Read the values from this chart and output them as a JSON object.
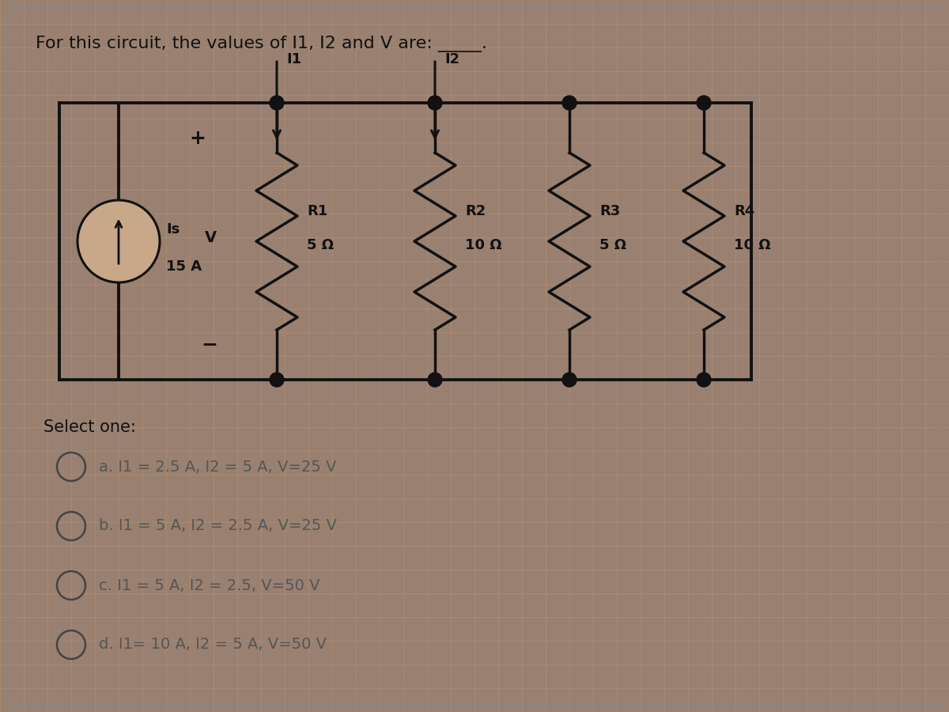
{
  "title": "For this circuit, the values of I1, I2 and V are: _____.",
  "bg_outer": "#9a8070",
  "bg_panel": "#c8a888",
  "grid_color": "#b89878",
  "border_color": "#111111",
  "wire_color": "#111111",
  "text_color": "#111111",
  "option_color": "#555555",
  "options": [
    "a. I1 = 2.5 A, I2 = 5 A, V=25 V",
    "b. I1 = 5 A, I2 = 2.5 A, V=25 V",
    "c. I1 = 5 A, I2 = 2.5, V=50 V",
    "d. I1= 10 A, I2 = 5 A, V=50 V"
  ],
  "select_text": "Select one:",
  "R_labels": [
    "R1",
    "R2",
    "R3",
    "R4"
  ],
  "R_values": [
    "5 Ω",
    "10 Ω",
    "5 Ω",
    "10 Ω"
  ],
  "Is_label": "Is",
  "Is_value": "15 A",
  "V_label": "V",
  "I1_label": "I1",
  "I2_label": "I2",
  "plus_label": "+",
  "minus_label": "−",
  "lw_wire": 2.8,
  "lw_resistor": 2.5
}
